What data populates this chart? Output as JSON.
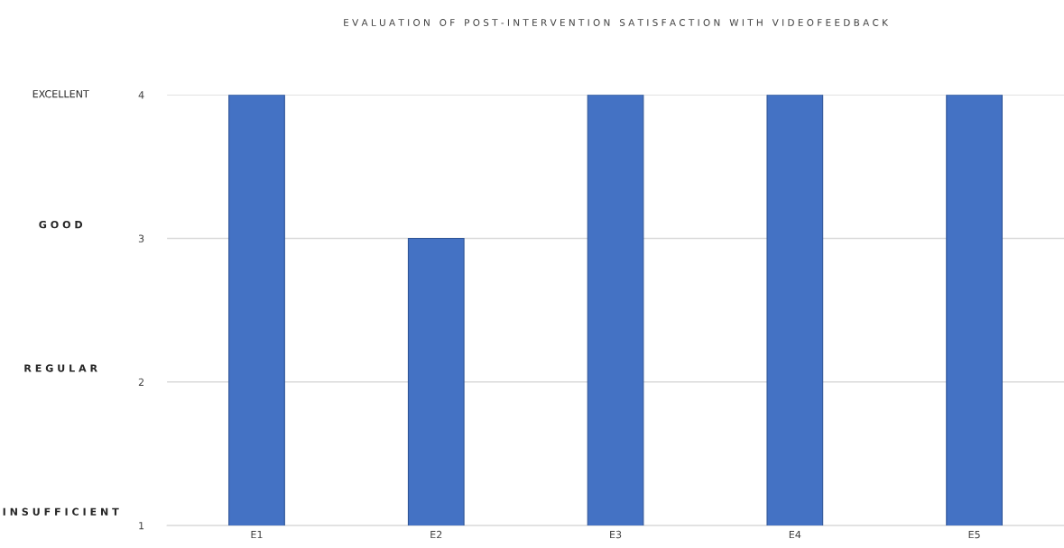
{
  "chart_data": {
    "type": "bar",
    "title": "E V A L U A T I O N   O F   P O S T - I N T E R V E N T I O N   S A T I S F A C T I O N   W I T H   V I D E O F E E D B A C K",
    "categories": [
      "E1",
      "E2",
      "E3",
      "E4",
      "E5"
    ],
    "values": [
      4,
      3,
      4,
      4,
      4
    ],
    "color": "#4472c4",
    "ylim": [
      1,
      4
    ],
    "yticks": [
      1,
      2,
      3,
      4
    ],
    "annotations": [
      "EXCELLENT",
      "G O O D",
      "R E G U L A R",
      "I N S U F F I C I E N T"
    ],
    "grid": "y"
  }
}
